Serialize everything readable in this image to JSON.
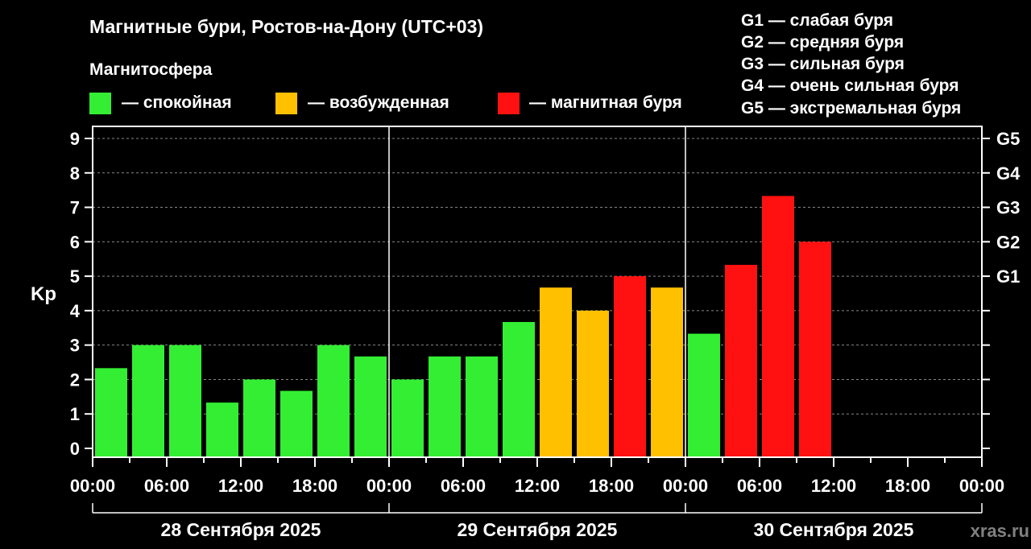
{
  "title": "Магнитные бури, Ростов-на-Дону (UTC+03)",
  "legend": {
    "heading": "Магнитосфера",
    "items": [
      {
        "label": "— спокойная",
        "color": "#33ee33"
      },
      {
        "label": "— возбужденная",
        "color": "#ffc000"
      },
      {
        "label": "— магнитная буря",
        "color": "#ff1111"
      }
    ]
  },
  "g_scale": [
    "G1 — слабая буря",
    "G2 — средняя буря",
    "G3 — сильная буря",
    "G4 — очень сильная буря",
    "G5 — экстремальная буря"
  ],
  "watermark": "xras.ru",
  "chart_data": {
    "type": "bar",
    "ylabel": "Kp",
    "ylim": [
      0,
      9
    ],
    "y_ticks": [
      "0",
      "1",
      "2",
      "3",
      "4",
      "5",
      "6",
      "7",
      "8",
      "9"
    ],
    "right_ticks": [
      {
        "value": 5,
        "label": "G1"
      },
      {
        "value": 6,
        "label": "G2"
      },
      {
        "value": 7,
        "label": "G3"
      },
      {
        "value": 8,
        "label": "G4"
      },
      {
        "value": 9,
        "label": "G5"
      }
    ],
    "x_tick_labels": [
      "00:00",
      "06:00",
      "12:00",
      "18:00",
      "00:00",
      "06:00",
      "12:00",
      "18:00",
      "00:00",
      "06:00",
      "12:00",
      "18:00",
      "00:00"
    ],
    "days": [
      "28 Сентября 2025",
      "29 Сентября 2025",
      "30 Сентября 2025"
    ],
    "interval_hours": 3,
    "values": [
      2.33,
      3.0,
      3.0,
      1.33,
      2.0,
      1.67,
      3.0,
      2.67,
      2.0,
      2.67,
      2.67,
      3.67,
      4.67,
      4.0,
      5.0,
      4.67,
      3.33,
      5.33,
      7.33,
      6.0
    ],
    "levels": [
      "quiet",
      "quiet",
      "quiet",
      "quiet",
      "quiet",
      "quiet",
      "quiet",
      "quiet",
      "quiet",
      "quiet",
      "quiet",
      "quiet",
      "active",
      "active",
      "storm",
      "active",
      "quiet",
      "storm",
      "storm",
      "storm"
    ],
    "level_colors": {
      "quiet": "#33ee33",
      "active": "#ffc000",
      "storm": "#ff1111"
    },
    "grid": true
  }
}
